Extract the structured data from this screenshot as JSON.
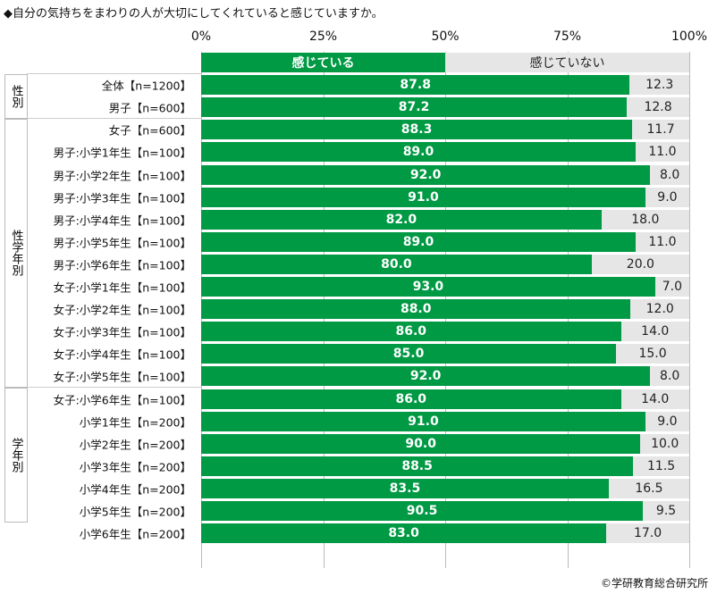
{
  "chart_data": {
    "type": "bar",
    "stacked": true,
    "orientation": "horizontal",
    "title": "◆自分の気持ちをまわりの人が大切にしてくれていると感じていますか。",
    "ticks": [
      "0%",
      "25%",
      "50%",
      "75%",
      "100%"
    ],
    "xlim": [
      0,
      100
    ],
    "legend": [
      "感じている",
      "感じていない"
    ],
    "colors": {
      "yes": "#009944",
      "no": "#e6e6e6"
    },
    "groups": [
      {
        "label": "性別",
        "from": 1,
        "to": 2
      },
      {
        "label": "性学年別",
        "from": 3,
        "to": 14
      },
      {
        "label": "学年別",
        "from": 15,
        "to": 20
      }
    ],
    "categories": [
      "全体【n=1200】",
      "男子【n=600】",
      "女子【n=600】",
      "男子:小学1年生【n=100】",
      "男子:小学2年生【n=100】",
      "男子:小学3年生【n=100】",
      "男子:小学4年生【n=100】",
      "男子:小学5年生【n=100】",
      "男子:小学6年生【n=100】",
      "女子:小学1年生【n=100】",
      "女子:小学2年生【n=100】",
      "女子:小学3年生【n=100】",
      "女子:小学4年生【n=100】",
      "女子:小学5年生【n=100】",
      "女子:小学6年生【n=100】",
      "小学1年生【n=200】",
      "小学2年生【n=200】",
      "小学3年生【n=200】",
      "小学4年生【n=200】",
      "小学5年生【n=200】",
      "小学6年生【n=200】"
    ],
    "series": [
      {
        "name": "感じている",
        "values": [
          "87.8",
          "87.2",
          "88.3",
          "89.0",
          "92.0",
          "91.0",
          "82.0",
          "89.0",
          "80.0",
          "93.0",
          "88.0",
          "86.0",
          "85.0",
          "92.0",
          "86.0",
          "91.0",
          "90.0",
          "88.5",
          "83.5",
          "90.5",
          "83.0"
        ]
      },
      {
        "name": "感じていない",
        "values": [
          "12.3",
          "12.8",
          "11.7",
          "11.0",
          "8.0",
          "9.0",
          "18.0",
          "11.0",
          "20.0",
          "7.0",
          "12.0",
          "14.0",
          "15.0",
          "8.0",
          "14.0",
          "9.0",
          "10.0",
          "11.5",
          "16.5",
          "9.5",
          "17.0"
        ]
      }
    ]
  },
  "credit": "©学研教育総合研究所"
}
